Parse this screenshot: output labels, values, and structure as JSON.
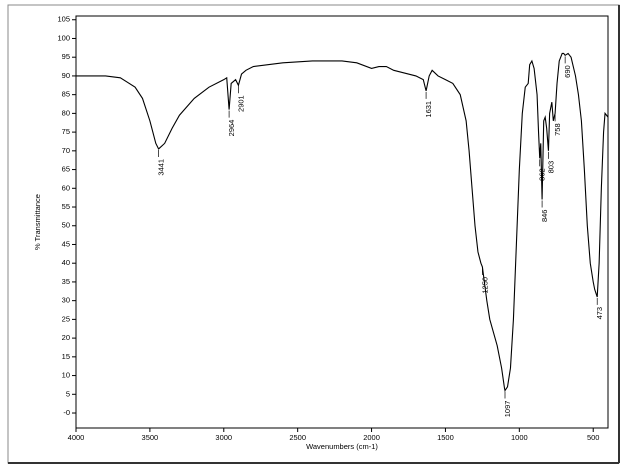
{
  "chart_data": {
    "type": "line",
    "x_label": "Wavenumbers (cm-1)",
    "y_label": "% Transmittance",
    "color": "#000000",
    "x": [
      4000,
      3800,
      3700,
      3600,
      3550,
      3500,
      3460,
      3441,
      3400,
      3350,
      3300,
      3200,
      3100,
      3000,
      2980,
      2964,
      2950,
      2920,
      2901,
      2880,
      2850,
      2800,
      2600,
      2400,
      2200,
      2100,
      2000,
      1950,
      1900,
      1850,
      1800,
      1700,
      1650,
      1631,
      1610,
      1590,
      1550,
      1500,
      1450,
      1400,
      1360,
      1340,
      1320,
      1300,
      1280,
      1260,
      1250,
      1240,
      1220,
      1200,
      1150,
      1120,
      1100,
      1097,
      1080,
      1060,
      1040,
      1020,
      1000,
      980,
      960,
      940,
      930,
      915,
      900,
      880,
      870,
      862,
      855,
      846,
      835,
      825,
      815,
      803,
      795,
      780,
      770,
      758,
      745,
      730,
      710,
      700,
      690,
      670,
      650,
      620,
      600,
      580,
      560,
      540,
      520,
      500,
      490,
      473,
      460,
      445,
      430,
      420,
      400
    ],
    "values": [
      90,
      90,
      89.5,
      87,
      84,
      78,
      72,
      70.5,
      72,
      76,
      79.5,
      84,
      87,
      89,
      89.5,
      81,
      88,
      89,
      87.5,
      90.5,
      91.5,
      92.5,
      93.5,
      94,
      94,
      93.5,
      92,
      92.5,
      92.5,
      91.5,
      91,
      90,
      89,
      86,
      90,
      91.5,
      90,
      89,
      88,
      85,
      78,
      70,
      60,
      50,
      43,
      40,
      39,
      36,
      30,
      25,
      18,
      12,
      6.5,
      6,
      7,
      12,
      25,
      45,
      65,
      80,
      87,
      88,
      93,
      94,
      92,
      85,
      75,
      68,
      72,
      57,
      78,
      79,
      76,
      70,
      80,
      83,
      78,
      80,
      88,
      94,
      96,
      96,
      95.5,
      96,
      95,
      90,
      85,
      78,
      65,
      50,
      40,
      35,
      33,
      31,
      40,
      60,
      75,
      80,
      79
    ],
    "peaks": [
      3441,
      2964,
      2901,
      1631,
      1250,
      1097,
      862,
      846,
      803,
      758,
      690,
      473
    ],
    "xlim": [
      4000,
      400
    ],
    "xticks": [
      4000,
      3500,
      3000,
      2500,
      2000,
      1500,
      1000,
      500
    ],
    "ylim": [
      -4,
      106
    ],
    "yticks": [
      {
        "value": 0,
        "label": "-0"
      },
      5,
      10,
      15,
      20,
      25,
      30,
      35,
      40,
      45,
      50,
      55,
      60,
      65,
      70,
      75,
      80,
      85,
      90,
      95,
      100,
      105
    ]
  }
}
